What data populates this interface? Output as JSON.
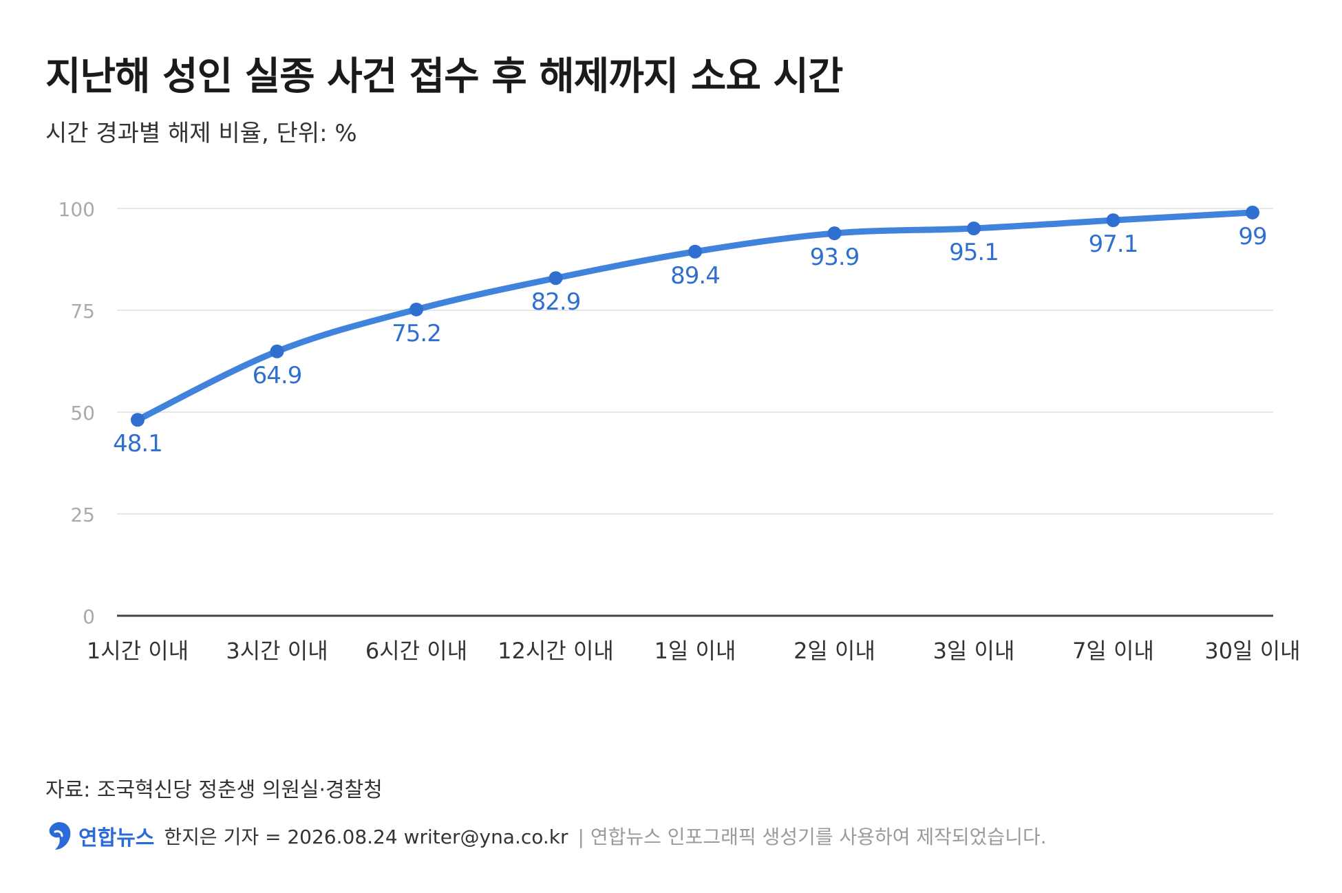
{
  "title": "지난해 성인 실종 사건 접수 후 해제까지 소요 시간",
  "subtitle": "시간 경과별 해제 비율, 단위: %",
  "source": "자료: 조국혁신당 정춘생 의원실·경찰청",
  "credit": {
    "brand": "연합뉴스",
    "byline": "한지은 기자 = 2026.08.24 writer@yna.co.kr",
    "note": "| 연합뉴스 인포그래픽 생성기를 사용하여 제작되었습니다.",
    "logo_icon": "yonhap-logo-icon"
  },
  "colors": {
    "line": "#3f83dc",
    "marker": "#2f6fcf",
    "label": "#2f6fcf",
    "grid": "#e6e6e6",
    "axis": "#444444",
    "tick_label": "#aaaaaa",
    "category_label": "#333333"
  },
  "chart_data": {
    "type": "line",
    "title": "지난해 성인 실종 사건 접수 후 해제까지 소요 시간",
    "subtitle": "시간 경과별 해제 비율, 단위: %",
    "categories": [
      "1시간 이내",
      "3시간 이내",
      "6시간 이내",
      "12시간 이내",
      "1일 이내",
      "2일 이내",
      "3일 이내",
      "7일 이내",
      "30일 이내"
    ],
    "values": [
      48.1,
      64.9,
      75.2,
      82.9,
      89.4,
      93.9,
      95.1,
      97.1,
      99
    ],
    "data_labels": [
      "48.1",
      "64.9",
      "75.2",
      "82.9",
      "89.4",
      "93.9",
      "95.1",
      "97.1",
      "99"
    ],
    "xlabel": "",
    "ylabel": "",
    "ylim": [
      0,
      100
    ],
    "yticks": [
      0,
      25,
      50,
      75,
      100
    ],
    "ytick_labels": [
      "0",
      "25",
      "50",
      "75",
      "100"
    ],
    "grid": true,
    "legend": "none"
  }
}
